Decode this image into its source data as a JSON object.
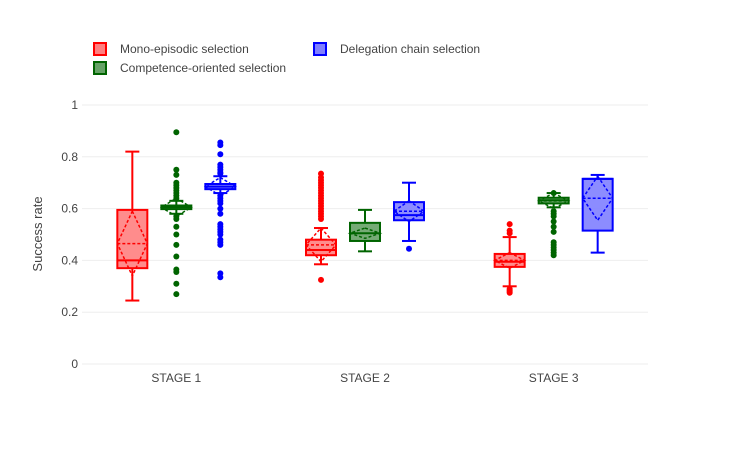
{
  "chart_data": {
    "type": "box",
    "ylabel": "Success rate",
    "xlabel": "",
    "ylim": [
      0,
      1
    ],
    "yticks": [
      0,
      0.2,
      0.4,
      0.6,
      0.8,
      1
    ],
    "ytick_labels": [
      "0",
      "0.2",
      "0.4",
      "0.6",
      "0.8",
      "1"
    ],
    "categories": [
      "STAGE 1",
      "STAGE 2",
      "STAGE 3"
    ],
    "grid": true,
    "legend_position": "top-left",
    "series": [
      {
        "name": "Mono-episodic selection",
        "color": "#ff0000",
        "fill": "#ff8080",
        "boxes": [
          {
            "lower_whisker": 0.245,
            "q1": 0.37,
            "median": 0.4,
            "q3": 0.595,
            "upper_whisker": 0.82,
            "mean": 0.465,
            "sd": 0.125,
            "outliers": []
          },
          {
            "lower_whisker": 0.385,
            "q1": 0.42,
            "median": 0.44,
            "q3": 0.48,
            "upper_whisker": 0.525,
            "mean": 0.46,
            "sd": 0.065,
            "outliers": [
              0.325,
              0.56,
              0.57,
              0.58,
              0.59,
              0.6,
              0.61,
              0.62,
              0.63,
              0.64,
              0.65,
              0.66,
              0.67,
              0.68,
              0.69,
              0.7,
              0.71,
              0.72,
              0.735
            ]
          },
          {
            "lower_whisker": 0.3,
            "q1": 0.375,
            "median": 0.395,
            "q3": 0.425,
            "upper_whisker": 0.49,
            "mean": 0.4,
            "sd": 0.03,
            "outliers": [
              0.275,
              0.28,
              0.285,
              0.29,
              0.505,
              0.515,
              0.54
            ]
          }
        ]
      },
      {
        "name": "Competence-oriented selection",
        "color": "#006400",
        "fill": "#66a266",
        "boxes": [
          {
            "lower_whisker": 0.58,
            "q1": 0.598,
            "median": 0.605,
            "q3": 0.612,
            "upper_whisker": 0.63,
            "mean": 0.605,
            "sd": 0.035,
            "outliers": [
              0.27,
              0.31,
              0.355,
              0.365,
              0.415,
              0.46,
              0.5,
              0.53,
              0.56,
              0.57,
              0.64,
              0.65,
              0.66,
              0.67,
              0.68,
              0.69,
              0.7,
              0.73,
              0.75,
              0.895
            ]
          },
          {
            "lower_whisker": 0.435,
            "q1": 0.475,
            "median": 0.505,
            "q3": 0.545,
            "upper_whisker": 0.595,
            "mean": 0.505,
            "sd": 0.02,
            "outliers": []
          },
          {
            "lower_whisker": 0.605,
            "q1": 0.62,
            "median": 0.632,
            "q3": 0.642,
            "upper_whisker": 0.66,
            "mean": 0.63,
            "sd": 0.03,
            "outliers": [
              0.42,
              0.43,
              0.44,
              0.45,
              0.46,
              0.47,
              0.51,
              0.53,
              0.55,
              0.57,
              0.58,
              0.59,
              0.66
            ]
          }
        ]
      },
      {
        "name": "Delegation chain selection",
        "color": "#0000ff",
        "fill": "#8080ff",
        "boxes": [
          {
            "lower_whisker": 0.66,
            "q1": 0.675,
            "median": 0.685,
            "q3": 0.695,
            "upper_whisker": 0.725,
            "mean": 0.685,
            "sd": 0.035,
            "outliers": [
              0.335,
              0.35,
              0.46,
              0.47,
              0.48,
              0.5,
              0.51,
              0.52,
              0.53,
              0.54,
              0.58,
              0.6,
              0.62,
              0.63,
              0.64,
              0.65,
              0.735,
              0.74,
              0.75,
              0.76,
              0.77,
              0.81,
              0.845,
              0.855
            ]
          },
          {
            "lower_whisker": 0.475,
            "q1": 0.555,
            "median": 0.575,
            "q3": 0.625,
            "upper_whisker": 0.7,
            "mean": 0.59,
            "sd": 0.04,
            "outliers": [
              0.445
            ]
          },
          {
            "lower_whisker": 0.43,
            "q1": 0.515,
            "median": 0.715,
            "q3": 0.715,
            "upper_whisker": 0.73,
            "mean": 0.64,
            "sd": 0.085,
            "outliers": []
          }
        ]
      }
    ]
  }
}
